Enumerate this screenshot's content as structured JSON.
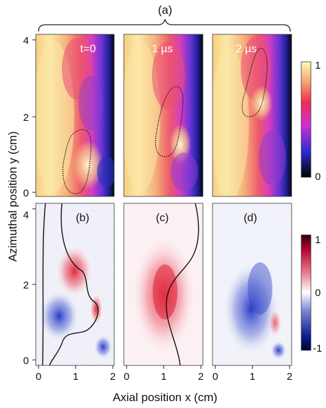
{
  "figure": {
    "group_label": "(a)",
    "ylabel": "Azimuthal  position y (cm)",
    "xlabel": "Axial position x (cm)",
    "top_row": {
      "panels": [
        {
          "id": "a1",
          "label": "t=0"
        },
        {
          "id": "a2",
          "label": "1 µs"
        },
        {
          "id": "a3",
          "label": "2 µs"
        }
      ],
      "y_ticks": [
        "4",
        "2",
        "0"
      ],
      "colorbar": {
        "ticks": [
          "1",
          "0"
        ],
        "range": [
          0,
          1
        ]
      }
    },
    "bottom_row": {
      "panels": [
        {
          "id": "b",
          "label": "(b)"
        },
        {
          "id": "c",
          "label": "(c)"
        },
        {
          "id": "d",
          "label": "(d)"
        }
      ],
      "y_ticks": [
        "4",
        "2",
        "0"
      ],
      "x_ticks": [
        "0",
        "1",
        "2"
      ],
      "colorbar": {
        "ticks": [
          "1",
          "0",
          "-1"
        ],
        "range": [
          -1,
          1
        ]
      }
    },
    "colors": {
      "seq_low": "#000000",
      "seq_mid1": "#2b2bd0",
      "seq_mid2": "#d02fd8",
      "seq_mid3": "#ec2f50",
      "seq_high": "#fbfbb8",
      "div_neg": "#0d1a8c",
      "div_zero": "#ffffff",
      "div_pos": "#b0002a"
    }
  }
}
